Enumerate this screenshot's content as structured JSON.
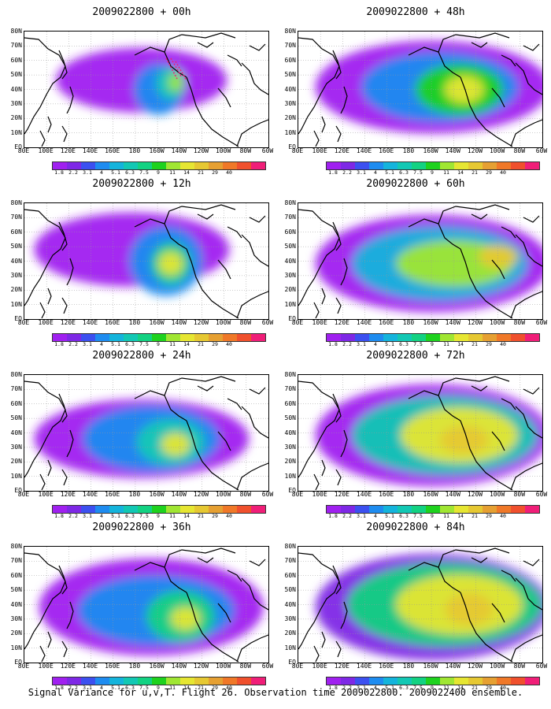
{
  "footer": "Signal Variance for u,v,T. Flight 26. Observation time 2009022800. 2009022400 ensemble.",
  "lat_labels": [
    "80N",
    "70N",
    "60N",
    "50N",
    "40N",
    "30N",
    "20N",
    "10N",
    "EQ"
  ],
  "lon_labels": [
    "80E",
    "100E",
    "120E",
    "140E",
    "160E",
    "180",
    "160W",
    "140W",
    "120W",
    "100W",
    "80W",
    "60W"
  ],
  "colorbar": {
    "colors": [
      "#a020f0",
      "#7e28e6",
      "#3c50f0",
      "#1e8cf0",
      "#14b4dc",
      "#12c8b4",
      "#12d282",
      "#1ed21e",
      "#a0e632",
      "#e6e632",
      "#e6c832",
      "#e6a032",
      "#f07828",
      "#f0502d",
      "#f01e78"
    ],
    "labels": [
      "1.8",
      "2.2",
      "3.1",
      "4",
      "5.1",
      "6.3",
      "7.5",
      "9",
      "11",
      "14",
      "21",
      "29",
      "40"
    ]
  },
  "panels": [
    {
      "title": "2009022800 + 00h",
      "lead": 0
    },
    {
      "title": "2009022800 + 48h",
      "lead": 48
    },
    {
      "title": "2009022800 + 12h",
      "lead": 12
    },
    {
      "title": "2009022800 + 60h",
      "lead": 60
    },
    {
      "title": "2009022800 + 24h",
      "lead": 24
    },
    {
      "title": "2009022800 + 72h",
      "lead": 72
    },
    {
      "title": "2009022800 + 36h",
      "lead": 36
    },
    {
      "title": "2009022800 + 84h",
      "lead": 84
    }
  ]
}
